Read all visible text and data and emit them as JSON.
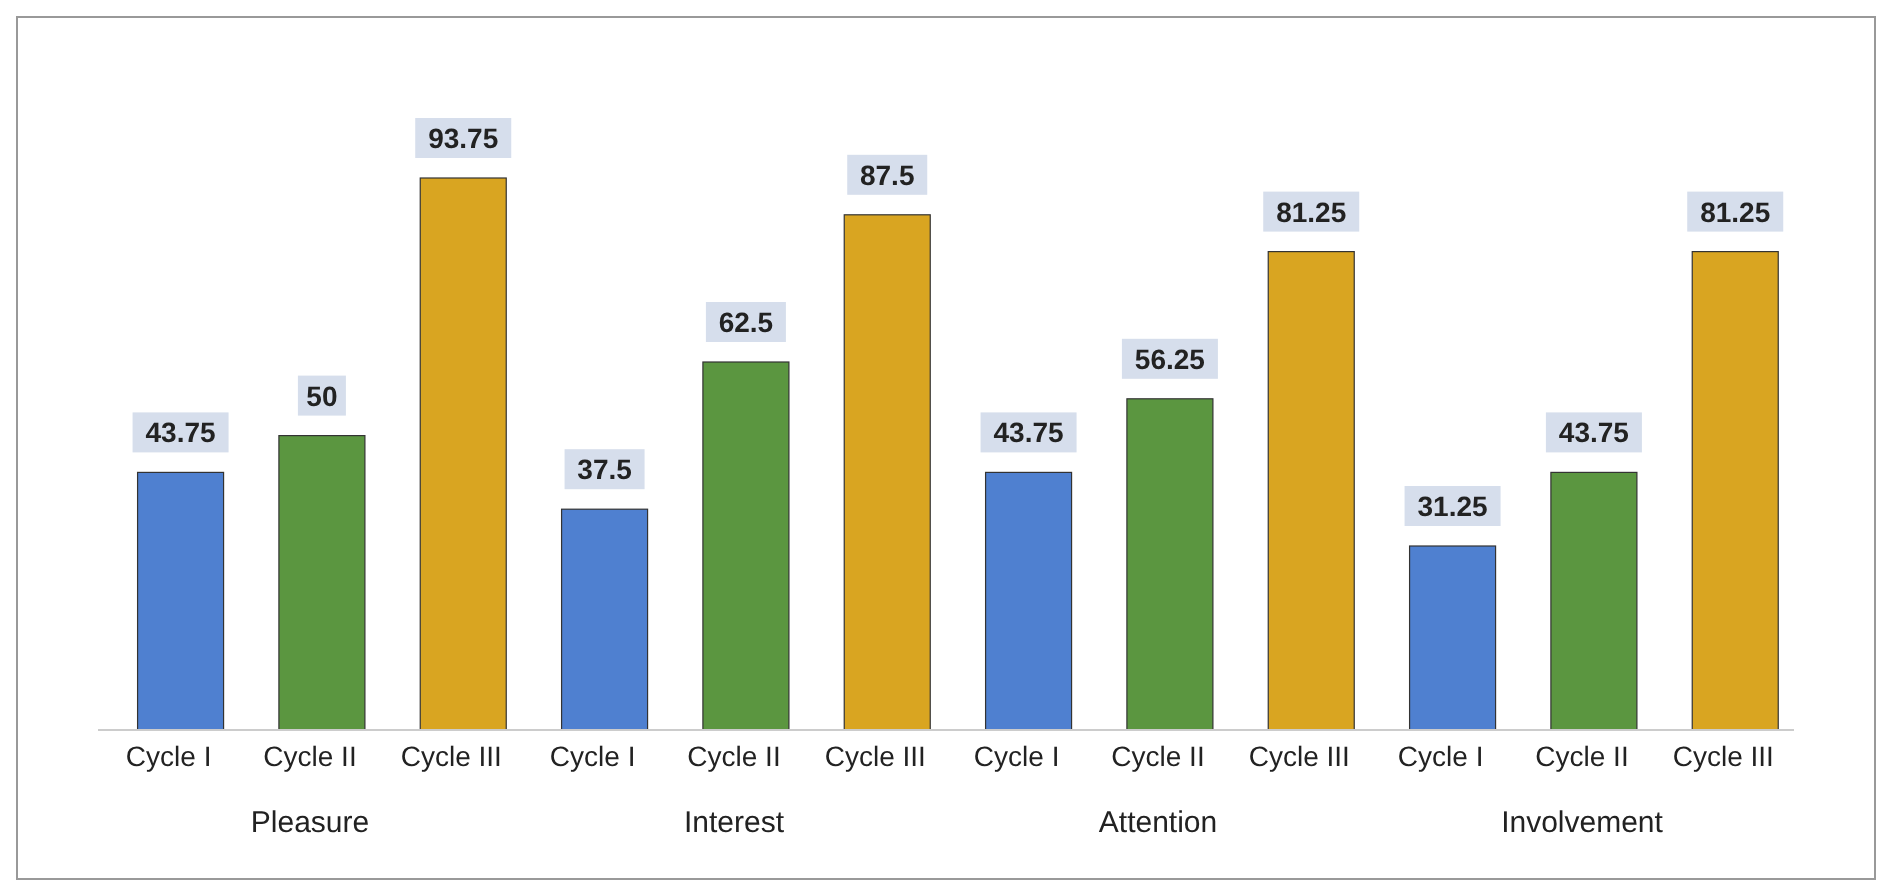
{
  "chart_data": {
    "type": "bar",
    "categories": [
      "Cycle I",
      "Cycle II",
      "Cycle III",
      "Cycle I",
      "Cycle II",
      "Cycle III",
      "Cycle I",
      "Cycle II",
      "Cycle III",
      "Cycle I",
      "Cycle II",
      "Cycle III"
    ],
    "values": [
      43.75,
      50,
      93.75,
      37.5,
      62.5,
      87.5,
      43.75,
      56.25,
      81.25,
      31.25,
      43.75,
      81.25
    ],
    "colors": [
      "#4f80d0",
      "#5b9640",
      "#d9a521",
      "#4f80d0",
      "#5b9640",
      "#d9a521",
      "#4f80d0",
      "#5b9640",
      "#d9a521",
      "#4f80d0",
      "#5b9640",
      "#d9a521"
    ],
    "data_labels": true,
    "annotations": [
      "Pleasure",
      "Interest",
      "Attention",
      "Involvement"
    ],
    "grid": false,
    "legend": false
  }
}
